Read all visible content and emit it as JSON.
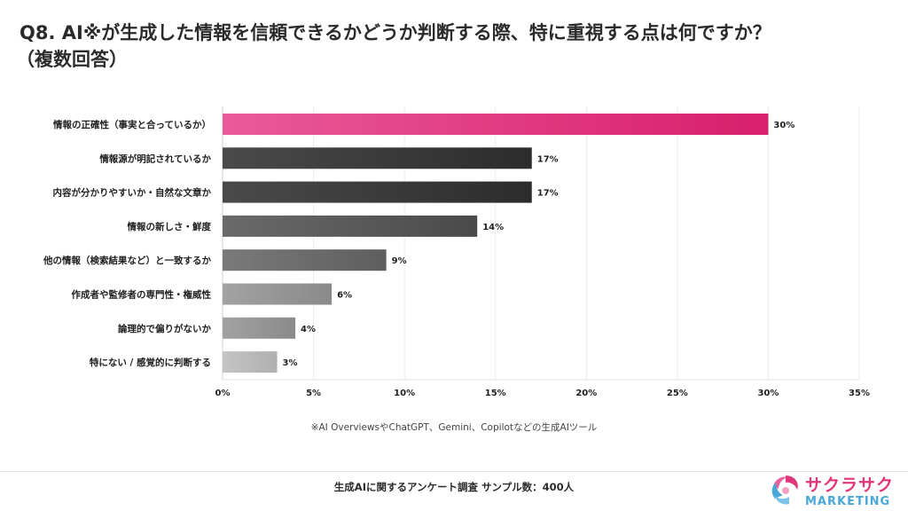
{
  "header": {
    "title_line1": "Q8. AI※が生成した情報を信頼できるかどうか判断する際、特に重視する点は何ですか？",
    "title_line2": "（複数回答）"
  },
  "chart_data": {
    "type": "bar",
    "orientation": "horizontal",
    "categories": [
      "情報の正確性（事実と合っているか）",
      "情報源が明記されているか",
      "内容が分かりやすいか・自然な文章か",
      "情報の新しさ・鮮度",
      "他の情報（検索結果など）と一致するか",
      "作成者や監修者の専門性・権威性",
      "論理的で偏りがないか",
      "特にない / 感覚的に判断する"
    ],
    "values": [
      30,
      17,
      17,
      14,
      9,
      6,
      4,
      3
    ],
    "value_labels": [
      "30%",
      "17%",
      "17%",
      "14%",
      "9%",
      "6%",
      "4%",
      "3%"
    ],
    "xlim": [
      0,
      35
    ],
    "xticks": [
      "0%",
      "5%",
      "10%",
      "15%",
      "20%",
      "25%",
      "30%",
      "35%"
    ],
    "xtick_values": [
      0,
      5,
      10,
      15,
      20,
      25,
      30,
      35
    ],
    "grid": true,
    "bar_colors": [
      [
        "#ea5a98",
        "#d81f6b"
      ],
      [
        "#4a4a4a",
        "#2c2c2c"
      ],
      [
        "#4a4a4a",
        "#2c2c2c"
      ],
      [
        "#6a6a6a",
        "#4a4a4a"
      ],
      [
        "#7a7a7a",
        "#5e5e5e"
      ],
      [
        "#a2a2a2",
        "#8a8a8a"
      ],
      [
        "#a2a2a2",
        "#8a8a8a"
      ],
      [
        "#c4c4c4",
        "#b0b0b0"
      ]
    ]
  },
  "note": "※AI OverviewsやChatGPT、Gemini、Copilotなどの生成AIツール",
  "footer": "生成AIに関するアンケート調査 サンプル数：400人",
  "logo": {
    "line1": "サクラサク",
    "line2": "MARKETING",
    "primary_color": "#e0357a",
    "secondary_color": "#4aa8d8",
    "icon": "sakura-logo-icon"
  }
}
